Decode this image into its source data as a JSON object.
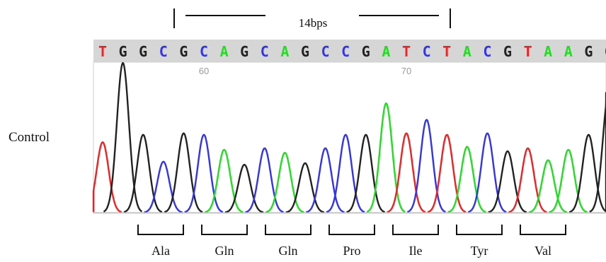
{
  "figure": {
    "span_label": "14bps",
    "sample_label": "Control"
  },
  "sequence": {
    "bases": [
      "T",
      "G",
      "G",
      "C",
      "G",
      "C",
      "A",
      "G",
      "C",
      "A",
      "G",
      "C",
      "C",
      "G",
      "A",
      "T",
      "C",
      "T",
      "A",
      "C",
      "G",
      "T",
      "A",
      "A",
      "G",
      "G"
    ],
    "position_labels": [
      {
        "text": "60",
        "base_index": 5
      },
      {
        "text": "70",
        "base_index": 15
      }
    ]
  },
  "base_colors": {
    "A": "#22dd22",
    "C": "#3333ee",
    "G": "#222222",
    "T": "#ee2222"
  },
  "codons": [
    "Ala",
    "Gln",
    "Gln",
    "Pro",
    "Ile",
    "Tyr",
    "Val"
  ],
  "peak_heights": [
    0.47,
    1.0,
    0.52,
    0.34,
    0.53,
    0.52,
    0.42,
    0.32,
    0.43,
    0.4,
    0.33,
    0.43,
    0.52,
    0.52,
    0.73,
    0.53,
    0.62,
    0.52,
    0.44,
    0.53,
    0.41,
    0.43,
    0.35,
    0.42,
    0.52,
    0.8
  ]
}
